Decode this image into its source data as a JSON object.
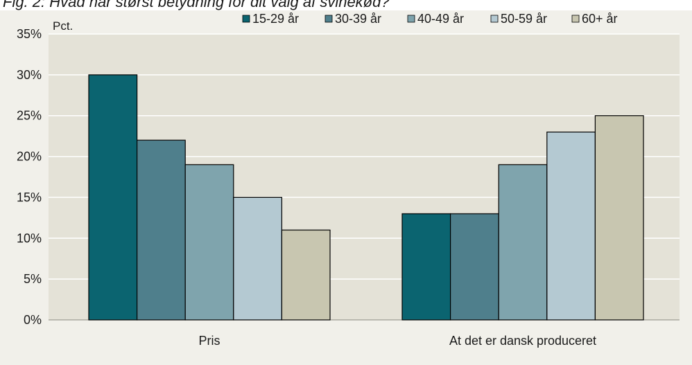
{
  "chart_data": {
    "type": "bar",
    "title": "Fig. 2: Hvad har størst betydning for dit valg af svinekød?",
    "ylabel": "Pct.",
    "xlabel": "",
    "ylim": [
      0,
      35
    ],
    "y_ticks": [
      "0%",
      "5%",
      "10%",
      "15%",
      "20%",
      "25%",
      "30%",
      "35%"
    ],
    "grid": true,
    "legend_position": "top",
    "categories": [
      "Pris",
      "At det er dansk produceret"
    ],
    "series": [
      {
        "name": "15-29 år",
        "color": "#0b6470",
        "values": [
          30,
          13
        ]
      },
      {
        "name": "30-39 år",
        "color": "#4f7f8c",
        "values": [
          22,
          13
        ]
      },
      {
        "name": "40-49 år",
        "color": "#7fa4ad",
        "values": [
          19,
          19
        ]
      },
      {
        "name": "50-59 år",
        "color": "#b4c9d2",
        "values": [
          15,
          23
        ]
      },
      {
        "name": "60+ år",
        "color": "#c8c6b0",
        "values": [
          11,
          25
        ]
      }
    ],
    "colors": {
      "plot_bg": "#e4e2d7",
      "outer_bg": "#f1f0ea",
      "grid": "#ffffff"
    }
  }
}
